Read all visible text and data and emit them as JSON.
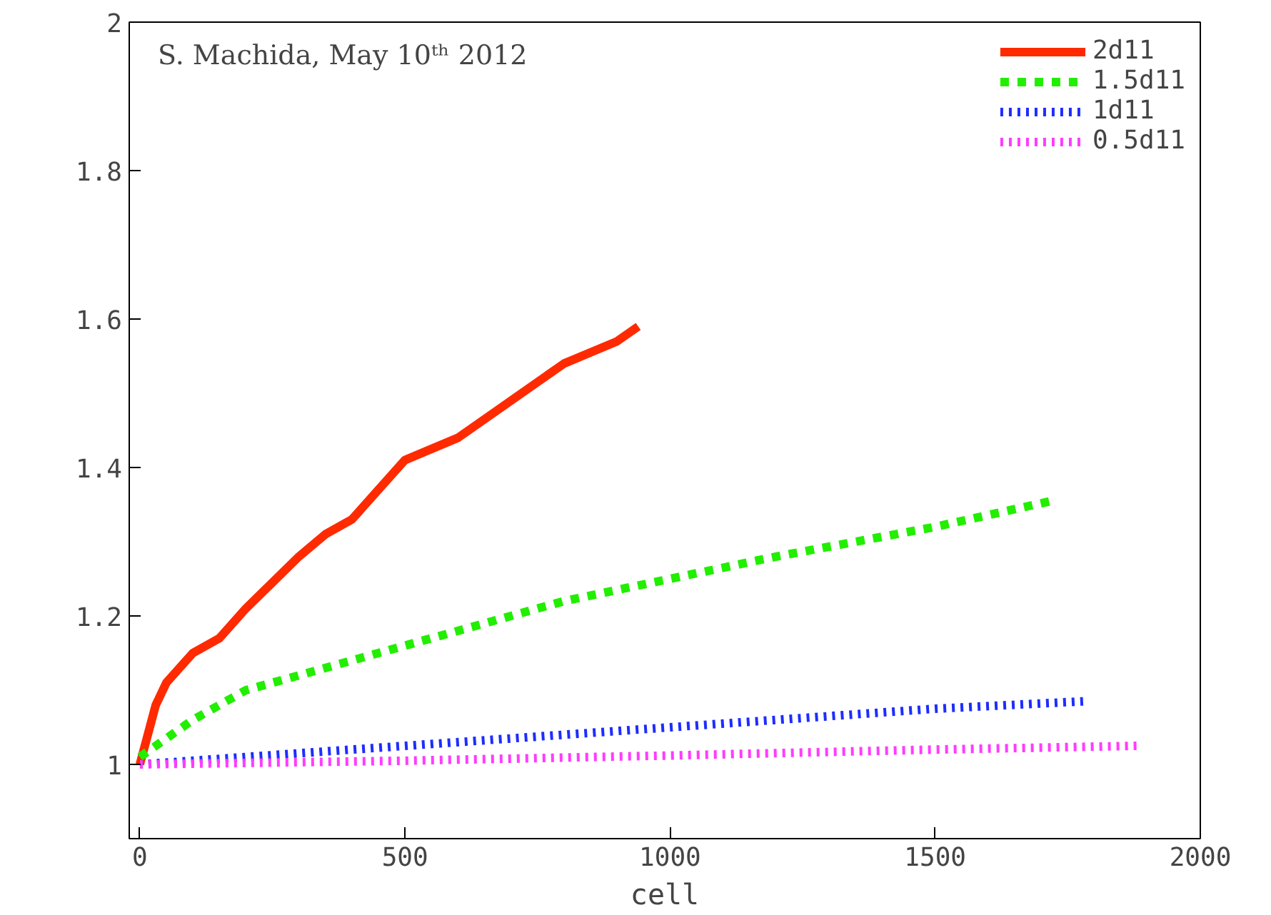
{
  "chart_data": {
    "type": "line",
    "xlabel": "cell",
    "annotations": [
      "S. Machida, May 10ᵗʰ 2012"
    ],
    "xlim": [
      -20,
      2000
    ],
    "ylim": [
      0.9,
      2
    ],
    "xticks": [
      0,
      500,
      1000,
      1500,
      2000
    ],
    "yticks": [
      1,
      1.2,
      1.4,
      1.6,
      1.8,
      2
    ],
    "grid": false,
    "legend": "top right",
    "series": [
      {
        "name": "2d11",
        "color": "#ff2a00",
        "line_style": "solid",
        "x": [
          0,
          30,
          50,
          100,
          150,
          200,
          300,
          350,
          400,
          500,
          600,
          700,
          800,
          900,
          940
        ],
        "values": [
          1.0,
          1.08,
          1.11,
          1.15,
          1.17,
          1.21,
          1.28,
          1.31,
          1.33,
          1.41,
          1.44,
          1.49,
          1.54,
          1.57,
          1.59
        ]
      },
      {
        "name": "1.5d11",
        "color": "#22ee00",
        "line_style": "dashed",
        "x": [
          0,
          100,
          200,
          500,
          800,
          1000,
          1200,
          1500,
          1720
        ],
        "values": [
          1.01,
          1.06,
          1.1,
          1.16,
          1.22,
          1.25,
          1.28,
          1.32,
          1.355
        ]
      },
      {
        "name": "1d11",
        "color": "#1e2dff",
        "line_style": "dotted",
        "x": [
          0,
          500,
          1000,
          1500,
          1780
        ],
        "values": [
          1.0,
          1.025,
          1.05,
          1.075,
          1.085
        ]
      },
      {
        "name": "0.5d11",
        "color": "#ff3cff",
        "line_style": "dotted",
        "x": [
          0,
          500,
          1000,
          1500,
          1880
        ],
        "values": [
          1.0,
          1.005,
          1.012,
          1.02,
          1.025
        ]
      }
    ]
  }
}
